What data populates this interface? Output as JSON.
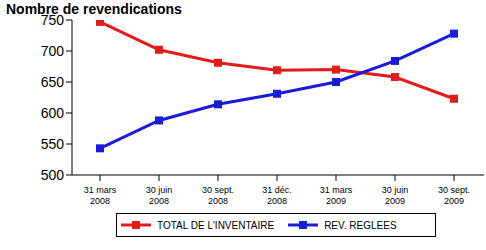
{
  "chart_data": {
    "type": "line",
    "y_label": "Nombre de revendications",
    "categories": [
      "31 mars 2008",
      "30 juin 2008",
      "30 sept. 2008",
      "31 déc. 2008",
      "31 mars 2009",
      "30 juin 2009",
      "30 sept. 2009"
    ],
    "series": [
      {
        "name": "TOTAL DE L'INVENTAIRE",
        "color": "#e31b1b",
        "marker": "square",
        "values": [
          747,
          702,
          681,
          669,
          670,
          658,
          623
        ]
      },
      {
        "name": "REV. REGLEES",
        "color": "#1a1adb",
        "marker": "square",
        "values": [
          543,
          588,
          614,
          631,
          650,
          684,
          728
        ]
      }
    ],
    "ylim": [
      500,
      750
    ],
    "yticks": [
      500,
      550,
      600,
      650,
      700,
      750
    ],
    "grid": false,
    "legend": "bottom"
  }
}
